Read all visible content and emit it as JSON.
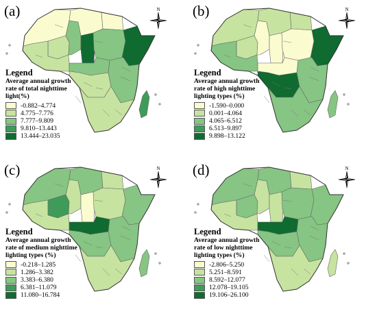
{
  "colors": [
    "#fbfbd0",
    "#c7e3a0",
    "#86c583",
    "#3e9c58",
    "#0f6b30"
  ],
  "compass_label": "N",
  "panels": [
    {
      "id": "a",
      "label": "(a)",
      "legend_title": "Legend",
      "legend_subtitle": [
        "Average annual growth",
        "rate of total nighttime",
        "light(%)"
      ],
      "legend_items": [
        "-0.882–4.774",
        "4.775–7.776",
        "7.777–9.809",
        "9.810–13.443",
        "13.444–23.035"
      ],
      "regions": {
        "nw": 0,
        "mali": 1,
        "wcoast": 1,
        "niger": 2,
        "chad": 4,
        "libya": 0,
        "egypt": 0,
        "sudan": 2,
        "horn": 4,
        "central": 2,
        "congo": 1,
        "east": 2,
        "south": 1,
        "madagascar": 3
      }
    },
    {
      "id": "b",
      "label": "(b)",
      "legend_title": "Legend",
      "legend_subtitle": [
        "Average annual growth",
        "rate of high nighttime",
        "lighting types (%)"
      ],
      "legend_items": [
        "-1.590–0.000",
        "0.001–4.064",
        "4.065–6.512",
        "6.513–9.897",
        "9.898–13.122"
      ],
      "regions": {
        "nw": 1,
        "mali": 1,
        "wcoast": 2,
        "niger": 0,
        "chad": 0,
        "libya": 1,
        "egypt": 1,
        "sudan": 0,
        "horn": 4,
        "central": 0,
        "congo": 4,
        "east": 2,
        "south": 2,
        "madagascar": 2
      }
    },
    {
      "id": "c",
      "label": "(c)",
      "legend_title": "Legend",
      "legend_subtitle": [
        "Average annual growth",
        "rate of medium nighttime",
        "lighting types (%)"
      ],
      "legend_items": [
        "-0.218–1.285",
        "1.286–3.382",
        "3.383–6.380",
        "6.381–11.079",
        "11.080–16.784"
      ],
      "regions": {
        "nw": 2,
        "mali": 3,
        "wcoast": 1,
        "niger": 1,
        "chad": 0,
        "libya": 2,
        "egypt": 1,
        "sudan": 1,
        "horn": 2,
        "central": 4,
        "congo": 2,
        "east": 2,
        "south": 1,
        "madagascar": 2
      }
    },
    {
      "id": "d",
      "label": "(d)",
      "legend_title": "Legend",
      "legend_subtitle": [
        "Average annual growth",
        "rate of low nighttime",
        "lighting types (%)"
      ],
      "legend_items": [
        "-2.806–5.250",
        "5.251–8.591",
        "8.592–12.077",
        "12.078–19.105",
        "19.106–26.100"
      ],
      "regions": {
        "nw": 2,
        "mali": 2,
        "wcoast": 1,
        "niger": 1,
        "chad": 1,
        "libya": 2,
        "egypt": 1,
        "sudan": 2,
        "horn": 2,
        "central": 4,
        "congo": 2,
        "east": 2,
        "south": 1,
        "madagascar": 1
      }
    }
  ]
}
